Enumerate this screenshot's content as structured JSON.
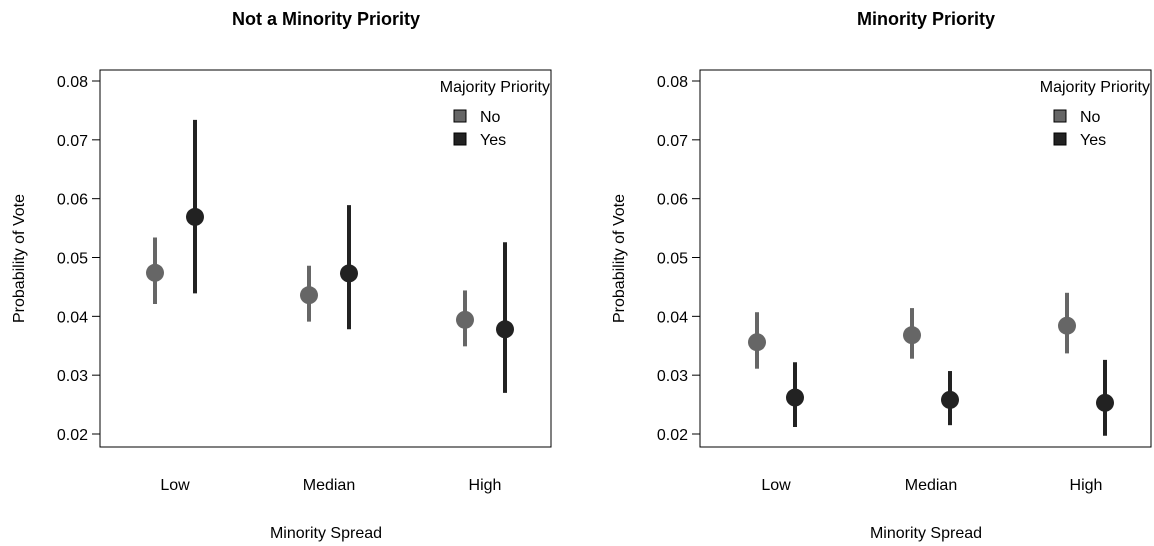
{
  "chart_data": [
    {
      "type": "scatter",
      "subtype": "point-range",
      "title": "Not a Minority Priority",
      "xlabel": "Minority Spread",
      "ylabel": "Probability of Vote",
      "categories": [
        "Low",
        "Median",
        "High"
      ],
      "ylim": [
        0.02,
        0.08
      ],
      "yticks": [
        "0.02",
        "0.03",
        "0.04",
        "0.05",
        "0.06",
        "0.07",
        "0.08"
      ],
      "grid": false,
      "legend_title": "Majority Priority",
      "legend_position": "top-right",
      "series": [
        {
          "name": "No",
          "color": "#666666",
          "values": [
            0.0474,
            0.0436,
            0.0394
          ],
          "lower": [
            0.0421,
            0.0391,
            0.0349
          ],
          "upper": [
            0.0534,
            0.0486,
            0.0444
          ]
        },
        {
          "name": "Yes",
          "color": "#222222",
          "values": [
            0.0569,
            0.0473,
            0.0378
          ],
          "lower": [
            0.0439,
            0.0378,
            0.027
          ],
          "upper": [
            0.0734,
            0.0589,
            0.0526
          ]
        }
      ]
    },
    {
      "type": "scatter",
      "subtype": "point-range",
      "title": "Minority Priority",
      "xlabel": "Minority Spread",
      "ylabel": "Probability of Vote",
      "categories": [
        "Low",
        "Median",
        "High"
      ],
      "ylim": [
        0.02,
        0.08
      ],
      "yticks": [
        "0.02",
        "0.03",
        "0.04",
        "0.05",
        "0.06",
        "0.07",
        "0.08"
      ],
      "grid": false,
      "legend_title": "Majority Priority",
      "legend_position": "top-right",
      "series": [
        {
          "name": "No",
          "color": "#666666",
          "values": [
            0.0356,
            0.0368,
            0.0384
          ],
          "lower": [
            0.0311,
            0.0328,
            0.0337
          ],
          "upper": [
            0.0407,
            0.0414,
            0.044
          ]
        },
        {
          "name": "Yes",
          "color": "#222222",
          "values": [
            0.0262,
            0.0258,
            0.0253
          ],
          "lower": [
            0.0212,
            0.0215,
            0.0197
          ],
          "upper": [
            0.0322,
            0.0307,
            0.0326
          ]
        }
      ]
    }
  ]
}
